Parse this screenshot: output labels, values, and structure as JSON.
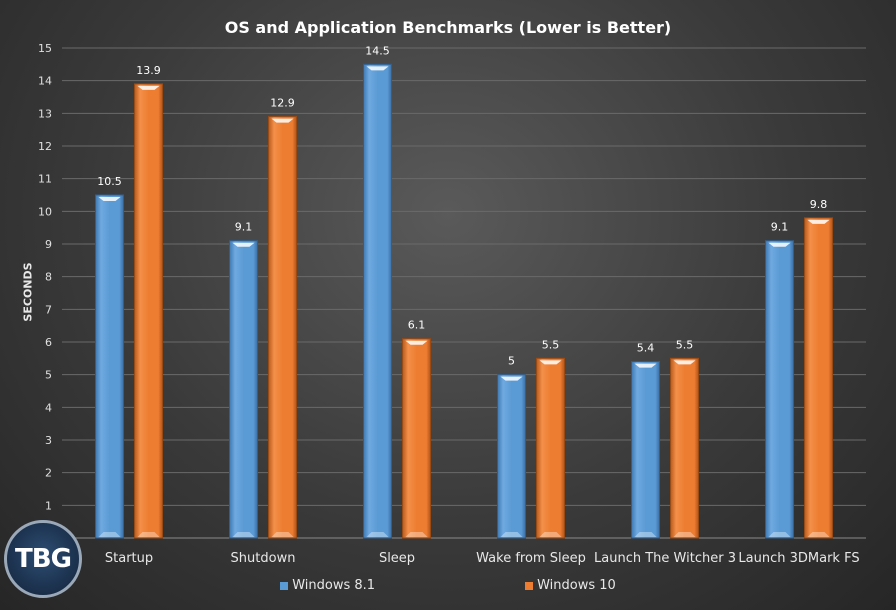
{
  "chart_data": {
    "type": "bar",
    "title": "OS and Application Benchmarks (Lower is Better)",
    "ylabel": "SECONDS",
    "xlabel": "",
    "ylim": [
      0,
      15
    ],
    "yticks": [
      1,
      2,
      3,
      4,
      5,
      6,
      7,
      8,
      9,
      10,
      11,
      12,
      13,
      14,
      15
    ],
    "categories": [
      "Startup",
      "Shutdown",
      "Sleep",
      "Wake from Sleep",
      "Launch The Witcher 3",
      "Launch 3DMark FS"
    ],
    "series": [
      {
        "name": "Windows 8.1",
        "color": "#5b9bd5",
        "values": [
          10.5,
          9.1,
          14.5,
          5,
          5.4,
          9.1
        ]
      },
      {
        "name": "Windows 10",
        "color": "#ed7d31",
        "values": [
          13.9,
          12.9,
          6.1,
          5.5,
          5.5,
          9.8
        ]
      }
    ],
    "grid": true,
    "legend_position": "bottom"
  },
  "logo_text": "TBG"
}
